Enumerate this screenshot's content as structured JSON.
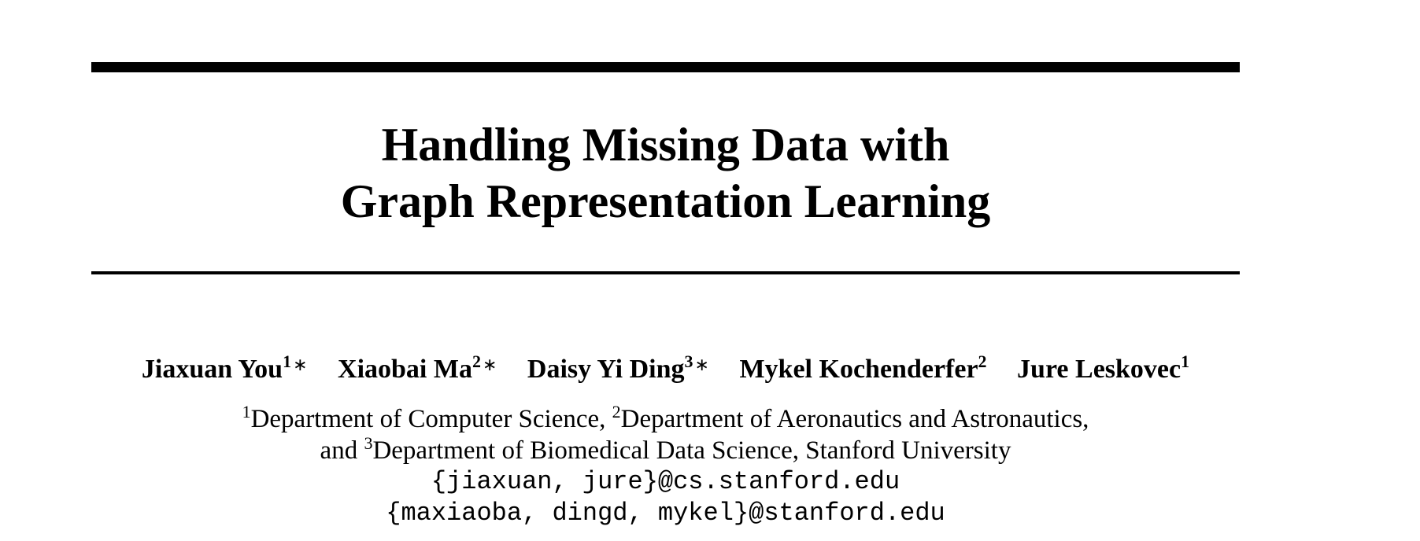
{
  "paper": {
    "title_line1": "Handling Missing Data with",
    "title_line2": "Graph Representation Learning",
    "authors": [
      {
        "name": "Jiaxuan You",
        "affil": "1",
        "mark": "∗"
      },
      {
        "name": "Xiaobai Ma",
        "affil": "2",
        "mark": "∗"
      },
      {
        "name": "Daisy Yi Ding",
        "affil": "3",
        "mark": "∗"
      },
      {
        "name": "Mykel Kochenderfer",
        "affil": "2",
        "mark": ""
      },
      {
        "name": "Jure Leskovec",
        "affil": "1",
        "mark": ""
      }
    ],
    "affiliations": {
      "sup1": "1",
      "text1": "Department of Computer Science, ",
      "sup2": "2",
      "text2": "Department of Aeronautics and Astronautics,",
      "and": "and ",
      "sup3": "3",
      "text3": "Department of Biomedical Data Science, Stanford University"
    },
    "emails": [
      "{jiaxuan, jure}@cs.stanford.edu",
      "{maxiaoba, dingd, mykel}@stanford.edu"
    ]
  }
}
